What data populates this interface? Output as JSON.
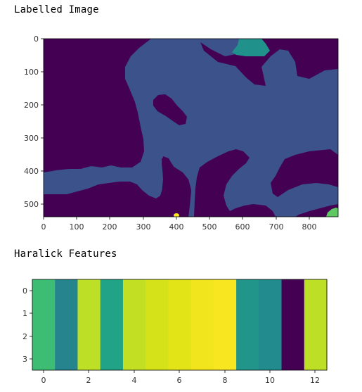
{
  "outputs": {
    "label_1": "Labelled Image",
    "label_2": "Haralick Features"
  },
  "chart_data": [
    {
      "type": "heatmap",
      "description": "segmentation label image (imshow)",
      "title": "",
      "xlabel": "",
      "ylabel": "",
      "xlim": [
        0,
        885
      ],
      "ylim": [
        540,
        0
      ],
      "xticks": [
        "0",
        "100",
        "200",
        "300",
        "400",
        "500",
        "600",
        "700",
        "800"
      ],
      "yticks": [
        "0",
        "100",
        "200",
        "300",
        "400",
        "500"
      ],
      "colormap": "viridis",
      "label_colors": [
        "#440154",
        "#3b528b",
        "#21918c",
        "#5ec962",
        "#fde725"
      ]
    },
    {
      "type": "heatmap",
      "description": "haralick feature matrix (imshow), 4 rows x 13 columns, each column uniform",
      "title": "",
      "xlabel": "",
      "ylabel": "",
      "rows": 4,
      "cols": 13,
      "xticks": [
        "0",
        "2",
        "4",
        "6",
        "8",
        "10",
        "12"
      ],
      "yticks": [
        "0",
        "1",
        "2",
        "3"
      ],
      "colormap": "viridis",
      "column_colors": [
        "#3dbc74",
        "#25848e",
        "#bddf26",
        "#20a386",
        "#c2df23",
        "#d5e21a",
        "#e2e418",
        "#f1e51d",
        "#f8e621",
        "#22958b",
        "#228b8d",
        "#440154",
        "#bddf26"
      ]
    }
  ]
}
